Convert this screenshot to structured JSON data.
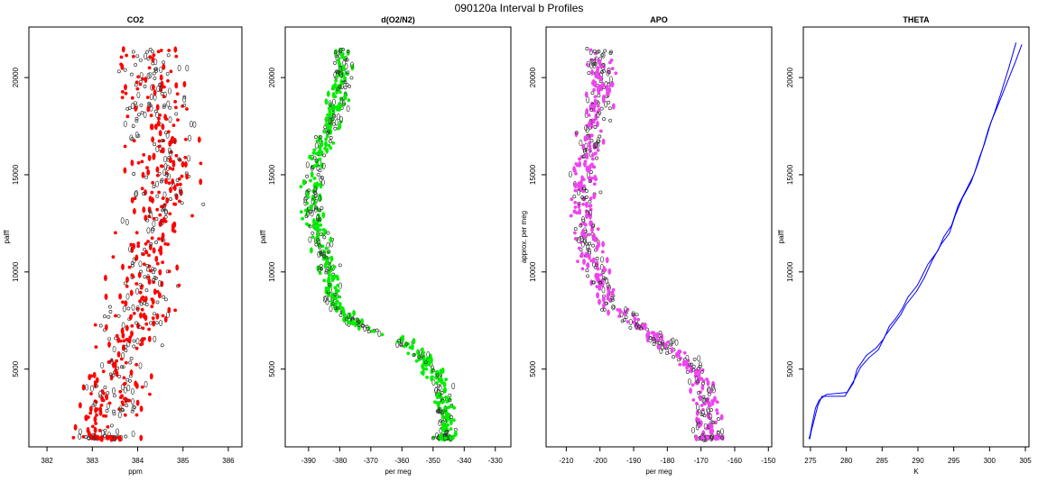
{
  "figure": {
    "title": "090120a   Interval b Profiles"
  },
  "chart_data": [
    {
      "type": "scatter",
      "title": "CO2",
      "xlabel": "ppm",
      "ylabel": "palff",
      "xlim": [
        381.6,
        386.3
      ],
      "ylim": [
        1000,
        22600
      ],
      "xticks": [
        382,
        383,
        384,
        385,
        386
      ],
      "xtick_labels": [
        "382",
        "383",
        "384",
        "385",
        "386"
      ],
      "yticks": [
        5000,
        10000,
        15000,
        20000
      ],
      "ytick_labels": [
        "5000",
        "10000",
        "15000",
        "20000"
      ],
      "color": "#ff0000",
      "profile": [
        [
          1400,
          383.2
        ],
        [
          2500,
          383.3
        ],
        [
          3500,
          383.5
        ],
        [
          4500,
          383.6
        ],
        [
          5500,
          383.7
        ],
        [
          6500,
          383.8
        ],
        [
          7500,
          383.9
        ],
        [
          8500,
          384.0
        ],
        [
          9500,
          384.1
        ],
        [
          10500,
          384.2
        ],
        [
          11500,
          384.3
        ],
        [
          12500,
          384.4
        ],
        [
          13500,
          384.5
        ],
        [
          14500,
          384.5
        ],
        [
          15500,
          384.5
        ],
        [
          16500,
          384.45
        ],
        [
          17500,
          384.4
        ],
        [
          18500,
          384.4
        ],
        [
          19500,
          384.4
        ],
        [
          20500,
          384.3
        ],
        [
          21500,
          384.2
        ]
      ],
      "spread": 0.55,
      "n_points": 650,
      "grid": false
    },
    {
      "type": "scatter",
      "title": "d(O2/N2)",
      "xlabel": "per meg",
      "ylabel": "palff",
      "xlim": [
        -397.5,
        -325
      ],
      "ylim": [
        1000,
        22600
      ],
      "xticks": [
        -390,
        -380,
        -370,
        -360,
        -350,
        -340,
        -330
      ],
      "xtick_labels": [
        "-390",
        "-380",
        "-370",
        "-360",
        "-350",
        "-340",
        "-330"
      ],
      "yticks": [
        5000,
        10000,
        15000,
        20000
      ],
      "ytick_labels": [
        "5000",
        "10000",
        "15000",
        "20000"
      ],
      "color": "#00ee00",
      "profile": [
        [
          1400,
          -346
        ],
        [
          3000,
          -346
        ],
        [
          4500,
          -348
        ],
        [
          5500,
          -353
        ],
        [
          6500,
          -360
        ],
        [
          7000,
          -370
        ],
        [
          7500,
          -377
        ],
        [
          8500,
          -382
        ],
        [
          9500,
          -383
        ],
        [
          10500,
          -384
        ],
        [
          11500,
          -386
        ],
        [
          12500,
          -388
        ],
        [
          13500,
          -389
        ],
        [
          14500,
          -389
        ],
        [
          15500,
          -388
        ],
        [
          16500,
          -386
        ],
        [
          17500,
          -383
        ],
        [
          18500,
          -381
        ],
        [
          19500,
          -380
        ],
        [
          20500,
          -379
        ],
        [
          21500,
          -380
        ]
      ],
      "spread": 2.4,
      "n_points": 650,
      "grid": false
    },
    {
      "type": "scatter",
      "title": "APO",
      "xlabel": "per meg",
      "ylabel": "approx. per meg",
      "xlim": [
        -216,
        -149
      ],
      "ylim": [
        1000,
        22600
      ],
      "xticks": [
        -210,
        -200,
        -190,
        -180,
        -170,
        -160,
        -150
      ],
      "xtick_labels": [
        "-210",
        "-200",
        "-190",
        "-180",
        "-170",
        "-160",
        "-150"
      ],
      "yticks": [
        5000,
        10000,
        15000,
        20000
      ],
      "ytick_labels": [
        "5000",
        "10000",
        "15000",
        "20000"
      ],
      "color": "#ee44ee",
      "profile": [
        [
          1400,
          -168
        ],
        [
          3000,
          -168
        ],
        [
          4500,
          -170
        ],
        [
          5500,
          -175
        ],
        [
          6500,
          -182
        ],
        [
          7500,
          -191
        ],
        [
          8500,
          -197
        ],
        [
          9500,
          -200
        ],
        [
          10500,
          -202
        ],
        [
          11500,
          -203
        ],
        [
          12500,
          -204
        ],
        [
          13500,
          -205
        ],
        [
          14500,
          -205
        ],
        [
          15500,
          -204
        ],
        [
          16500,
          -203
        ],
        [
          17500,
          -202
        ],
        [
          18500,
          -201
        ],
        [
          19500,
          -200
        ],
        [
          20500,
          -200
        ],
        [
          21500,
          -201
        ]
      ],
      "spread": 3.0,
      "n_points": 650,
      "grid": false
    },
    {
      "type": "line",
      "title": "THETA",
      "xlabel": "K",
      "ylabel": "palff",
      "xlim": [
        274,
        305.5
      ],
      "ylim": [
        1000,
        22600
      ],
      "xticks": [
        275,
        280,
        285,
        290,
        295,
        300,
        305
      ],
      "xtick_labels": [
        "275",
        "280",
        "285",
        "290",
        "295",
        "300",
        "305"
      ],
      "yticks": [
        5000,
        10000,
        15000,
        20000
      ],
      "ytick_labels": [
        "5000",
        "10000",
        "15000",
        "20000"
      ],
      "color": "#0000ff",
      "series": [
        {
          "x": [
            274.9,
            275.1,
            275.6,
            276.0,
            276.6,
            279.8,
            281.0,
            281.5,
            282.8,
            284.2,
            285.3,
            286.0,
            286.9,
            287.8,
            288.6,
            289.9,
            290.6,
            291.4,
            292.8,
            293.6,
            294.7,
            295.6,
            296.7,
            297.8,
            298.6,
            299.3,
            300.2,
            301.2,
            302.4,
            303.6,
            304.5
          ],
          "y": [
            1400,
            1800,
            2500,
            3100,
            3600,
            3600,
            4300,
            5000,
            5700,
            6100,
            6600,
            7200,
            7600,
            8100,
            8700,
            9300,
            9800,
            10400,
            11100,
            11800,
            12400,
            13400,
            14200,
            15000,
            15900,
            16600,
            17700,
            18600,
            19700,
            20800,
            21700
          ]
        },
        {
          "x": [
            274.8,
            275.0,
            275.3,
            275.7,
            276.2,
            277.2,
            280.1,
            281.2,
            282.0,
            283.2,
            284.5,
            285.4,
            286.6,
            287.6,
            288.3,
            289.8,
            290.9,
            292.0,
            293.2,
            294.4,
            295.2,
            296.2,
            297.4,
            298.3,
            299.1,
            299.8,
            300.7,
            301.5,
            302.6,
            303.7
          ],
          "y": [
            1400,
            1700,
            2300,
            3000,
            3400,
            3700,
            3800,
            4500,
            5100,
            5600,
            6000,
            6700,
            7300,
            7800,
            8300,
            9000,
            9700,
            10600,
            11400,
            12000,
            12900,
            13800,
            14600,
            15500,
            16400,
            17300,
            18200,
            19100,
            20400,
            21800
          ]
        }
      ],
      "grid": false
    }
  ]
}
